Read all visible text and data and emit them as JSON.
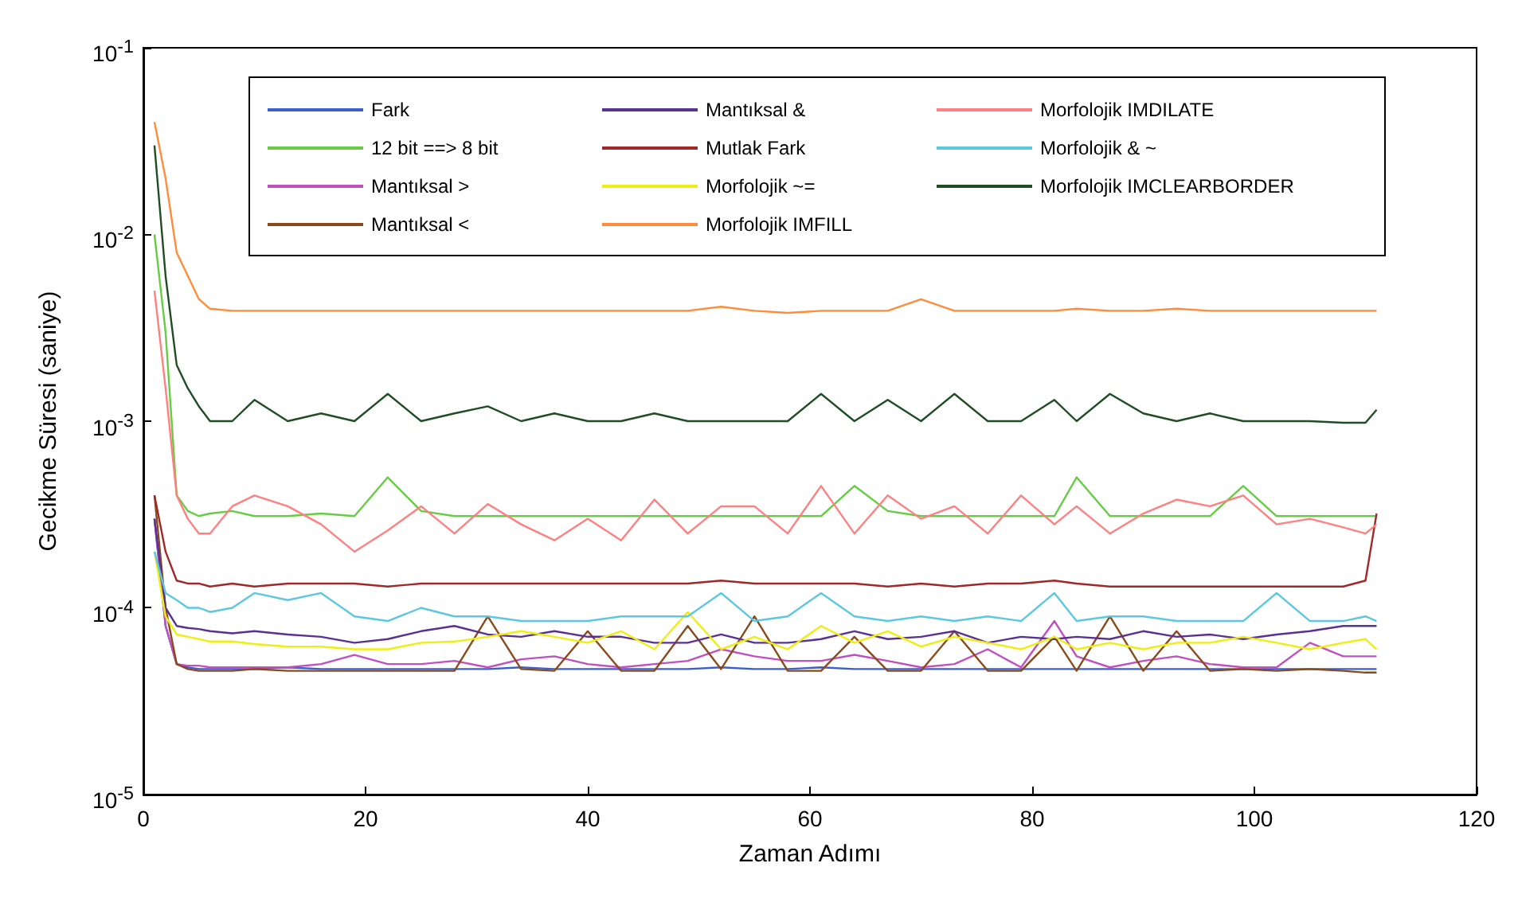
{
  "chart_data": {
    "type": "line",
    "xlabel": "Zaman Adımı",
    "ylabel": "Gecikme Süresi (saniye)",
    "log": "y",
    "grid": false,
    "legend": "top",
    "marker": "none",
    "line_style": "solid",
    "xlim": [
      0,
      120
    ],
    "xticks": [
      0,
      20,
      40,
      60,
      80,
      100,
      120
    ],
    "ylim": [
      1e-05,
      0.1
    ],
    "yticks": [
      {
        "value": 1e-05,
        "label": "10$^{-5}$"
      },
      {
        "value": 0.0001,
        "label": "10$^{-4}$"
      },
      {
        "value": 0.001,
        "label": "10$^{-3}$"
      },
      {
        "value": 0.01,
        "label": "10$^{-2}$"
      },
      {
        "value": 0.1,
        "label": "10$^{-1}$"
      }
    ],
    "x": [
      1,
      2,
      3,
      4,
      5,
      6,
      8,
      10,
      13,
      16,
      19,
      22,
      25,
      28,
      31,
      34,
      37,
      40,
      43,
      46,
      49,
      52,
      55,
      58,
      61,
      64,
      67,
      70,
      73,
      76,
      79,
      82,
      84,
      87,
      90,
      93,
      96,
      99,
      102,
      105,
      108,
      110,
      111
    ],
    "series": [
      {
        "name": "Fark",
        "color": "#3a5fcd",
        "values": [
          0.0003,
          8e-05,
          5e-05,
          4.8e-05,
          4.7e-05,
          4.7e-05,
          4.7e-05,
          4.7e-05,
          4.8e-05,
          4.7e-05,
          4.7e-05,
          4.7e-05,
          4.7e-05,
          4.7e-05,
          4.7e-05,
          4.8e-05,
          4.7e-05,
          4.7e-05,
          4.7e-05,
          4.7e-05,
          4.7e-05,
          4.8e-05,
          4.7e-05,
          4.7e-05,
          4.8e-05,
          4.7e-05,
          4.7e-05,
          4.7e-05,
          4.7e-05,
          4.7e-05,
          4.7e-05,
          4.7e-05,
          4.7e-05,
          4.7e-05,
          4.7e-05,
          4.7e-05,
          4.7e-05,
          4.7e-05,
          4.7e-05,
          4.7e-05,
          4.7e-05,
          4.7e-05,
          4.7e-05
        ]
      },
      {
        "name": "12 bit ==> 8 bit",
        "color": "#66cc44",
        "values": [
          0.01,
          0.003,
          0.0004,
          0.00033,
          0.00031,
          0.00032,
          0.00033,
          0.00031,
          0.00031,
          0.00032,
          0.00031,
          0.0005,
          0.00033,
          0.00031,
          0.00031,
          0.00031,
          0.00031,
          0.00031,
          0.00031,
          0.00031,
          0.00031,
          0.00031,
          0.00031,
          0.00031,
          0.00031,
          0.00045,
          0.00033,
          0.00031,
          0.00031,
          0.00031,
          0.00031,
          0.00031,
          0.0005,
          0.00031,
          0.00031,
          0.00031,
          0.00031,
          0.00045,
          0.00031,
          0.00031,
          0.00031,
          0.00031,
          0.00031
        ]
      },
      {
        "name": "Mantıksal >",
        "color": "#c050c0",
        "values": [
          0.0003,
          8e-05,
          5e-05,
          4.9e-05,
          4.9e-05,
          4.8e-05,
          4.8e-05,
          4.8e-05,
          4.8e-05,
          5e-05,
          5.6e-05,
          5e-05,
          5e-05,
          5.2e-05,
          4.8e-05,
          5.3e-05,
          5.5e-05,
          5e-05,
          4.8e-05,
          5e-05,
          5.2e-05,
          6e-05,
          5.5e-05,
          5.2e-05,
          5.2e-05,
          5.6e-05,
          5.2e-05,
          4.8e-05,
          5e-05,
          6e-05,
          4.8e-05,
          8.5e-05,
          5.5e-05,
          4.8e-05,
          5.2e-05,
          5.5e-05,
          5e-05,
          4.8e-05,
          4.8e-05,
          6.5e-05,
          5.5e-05,
          5.5e-05,
          5.5e-05
        ]
      },
      {
        "name": "Mantıksal <",
        "color": "#8b4a1c",
        "values": [
          0.0004,
          0.0001,
          5e-05,
          4.7e-05,
          4.6e-05,
          4.6e-05,
          4.6e-05,
          4.7e-05,
          4.6e-05,
          4.6e-05,
          4.6e-05,
          4.6e-05,
          4.6e-05,
          4.6e-05,
          9e-05,
          4.7e-05,
          4.6e-05,
          7.5e-05,
          4.6e-05,
          4.6e-05,
          8e-05,
          4.7e-05,
          9e-05,
          4.6e-05,
          4.6e-05,
          7e-05,
          4.6e-05,
          4.6e-05,
          7.5e-05,
          4.6e-05,
          4.6e-05,
          7e-05,
          4.6e-05,
          9e-05,
          4.6e-05,
          7.5e-05,
          4.6e-05,
          4.7e-05,
          4.6e-05,
          4.7e-05,
          4.6e-05,
          4.5e-05,
          4.5e-05
        ]
      },
      {
        "name": "Mantıksal &",
        "color": "#5a3090",
        "values": [
          0.0003,
          0.0001,
          8e-05,
          7.8e-05,
          7.7e-05,
          7.5e-05,
          7.3e-05,
          7.5e-05,
          7.2e-05,
          7e-05,
          6.5e-05,
          6.8e-05,
          7.5e-05,
          8e-05,
          7.2e-05,
          7e-05,
          7.5e-05,
          7e-05,
          7e-05,
          6.5e-05,
          6.5e-05,
          7.2e-05,
          6.5e-05,
          6.5e-05,
          6.8e-05,
          7.5e-05,
          6.8e-05,
          7e-05,
          7.5e-05,
          6.5e-05,
          7e-05,
          6.8e-05,
          7e-05,
          6.8e-05,
          7.5e-05,
          7e-05,
          7.2e-05,
          6.8e-05,
          7.2e-05,
          7.5e-05,
          8e-05,
          8e-05,
          8e-05
        ]
      },
      {
        "name": "Mutlak Fark",
        "color": "#a02828",
        "values": [
          0.0004,
          0.0002,
          0.00014,
          0.000135,
          0.000135,
          0.00013,
          0.000135,
          0.00013,
          0.000135,
          0.000135,
          0.000135,
          0.00013,
          0.000135,
          0.000135,
          0.000135,
          0.000135,
          0.000135,
          0.000135,
          0.000135,
          0.000135,
          0.000135,
          0.00014,
          0.000135,
          0.000135,
          0.000135,
          0.000135,
          0.00013,
          0.000135,
          0.00013,
          0.000135,
          0.000135,
          0.00014,
          0.000135,
          0.00013,
          0.00013,
          0.00013,
          0.00013,
          0.00013,
          0.00013,
          0.00013,
          0.00013,
          0.00014,
          0.00032
        ]
      },
      {
        "name": "Morfolojik ~=",
        "color": "#eeee10",
        "values": [
          0.0002,
          9e-05,
          7.2e-05,
          7e-05,
          6.8e-05,
          6.6e-05,
          6.6e-05,
          6.4e-05,
          6.2e-05,
          6.2e-05,
          6e-05,
          6e-05,
          6.5e-05,
          6.6e-05,
          7e-05,
          7.5e-05,
          7e-05,
          6.5e-05,
          7.5e-05,
          6e-05,
          9.5e-05,
          6e-05,
          7e-05,
          6e-05,
          8e-05,
          6.5e-05,
          7.5e-05,
          6.2e-05,
          7e-05,
          6.5e-05,
          6e-05,
          7e-05,
          6e-05,
          6.5e-05,
          6e-05,
          6.5e-05,
          6.5e-05,
          7e-05,
          6.5e-05,
          6e-05,
          6.5e-05,
          6.8e-05,
          6e-05
        ]
      },
      {
        "name": "Morfolojik IMFILL",
        "color": "#ff8c3a",
        "values": [
          0.04,
          0.02,
          0.008,
          0.006,
          0.0045,
          0.004,
          0.0039,
          0.0039,
          0.0039,
          0.0039,
          0.0039,
          0.0039,
          0.0039,
          0.0039,
          0.0039,
          0.0039,
          0.0039,
          0.0039,
          0.0039,
          0.0039,
          0.0039,
          0.0041,
          0.0039,
          0.0038,
          0.0039,
          0.0039,
          0.0039,
          0.0045,
          0.0039,
          0.0039,
          0.0039,
          0.0039,
          0.004,
          0.0039,
          0.0039,
          0.004,
          0.0039,
          0.0039,
          0.0039,
          0.0039,
          0.0039,
          0.0039,
          0.0039
        ]
      },
      {
        "name": "Morfolojik IMDILATE",
        "color": "#ff8080",
        "values": [
          0.005,
          0.0015,
          0.0004,
          0.0003,
          0.00025,
          0.00025,
          0.00035,
          0.0004,
          0.00035,
          0.00028,
          0.0002,
          0.00026,
          0.00035,
          0.00025,
          0.00036,
          0.00028,
          0.00023,
          0.0003,
          0.00023,
          0.00038,
          0.00025,
          0.00035,
          0.00035,
          0.00025,
          0.00045,
          0.00025,
          0.0004,
          0.0003,
          0.00035,
          0.00025,
          0.0004,
          0.00028,
          0.00035,
          0.00025,
          0.00032,
          0.00038,
          0.00035,
          0.0004,
          0.00028,
          0.0003,
          0.00027,
          0.00025,
          0.00028
        ]
      },
      {
        "name": "Morfolojik & ~",
        "color": "#5cc8e0",
        "values": [
          0.0002,
          0.00012,
          0.00011,
          0.0001,
          0.0001,
          9.5e-05,
          0.0001,
          0.00012,
          0.00011,
          0.00012,
          9e-05,
          8.5e-05,
          0.0001,
          9e-05,
          9e-05,
          8.5e-05,
          8.5e-05,
          8.5e-05,
          9e-05,
          9e-05,
          9e-05,
          0.00012,
          8.5e-05,
          9e-05,
          0.00012,
          9e-05,
          8.5e-05,
          9e-05,
          8.5e-05,
          9e-05,
          8.5e-05,
          0.00012,
          8.5e-05,
          9e-05,
          9e-05,
          8.5e-05,
          8.5e-05,
          8.5e-05,
          0.00012,
          8.5e-05,
          8.5e-05,
          9e-05,
          8.5e-05
        ]
      },
      {
        "name": "Morfolojik IMCLEARBORDER",
        "color": "#1f4d24",
        "values": [
          0.03,
          0.006,
          0.002,
          0.0015,
          0.0012,
          0.001,
          0.001,
          0.0013,
          0.001,
          0.0011,
          0.001,
          0.0014,
          0.001,
          0.0011,
          0.0012,
          0.001,
          0.0011,
          0.001,
          0.001,
          0.0011,
          0.001,
          0.001,
          0.001,
          0.001,
          0.0014,
          0.001,
          0.0013,
          0.001,
          0.0014,
          0.001,
          0.001,
          0.0013,
          0.001,
          0.0014,
          0.0011,
          0.001,
          0.0011,
          0.001,
          0.001,
          0.001,
          0.00098,
          0.00098,
          0.00115
        ]
      }
    ]
  }
}
